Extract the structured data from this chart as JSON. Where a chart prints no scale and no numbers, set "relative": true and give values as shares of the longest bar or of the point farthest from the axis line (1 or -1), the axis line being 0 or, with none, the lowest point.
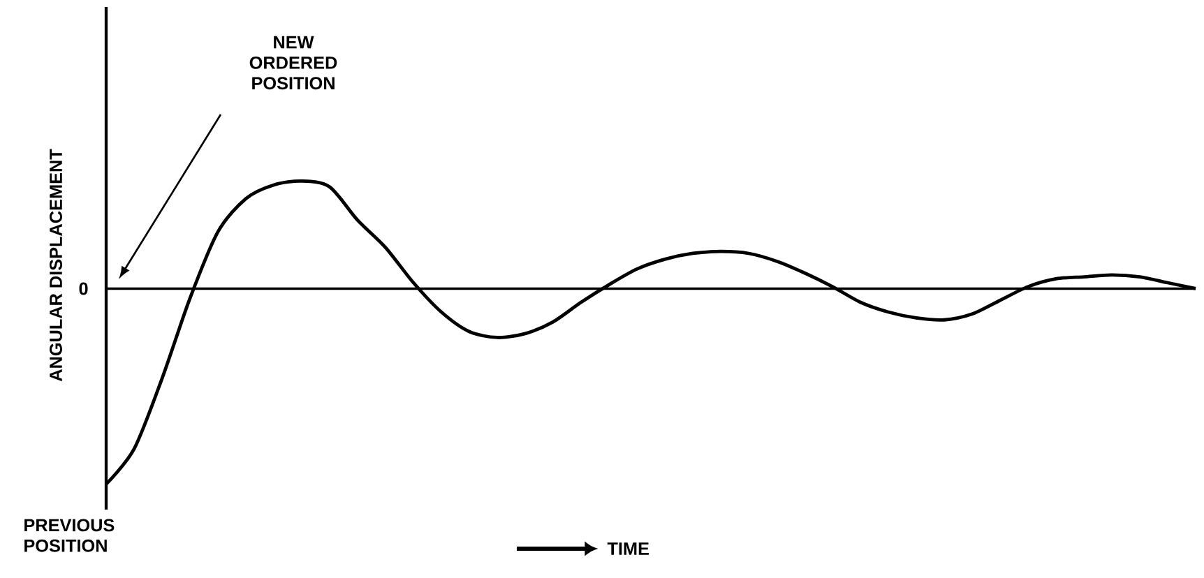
{
  "chart_data": {
    "type": "line",
    "relative": true,
    "xlabel": "TIME",
    "ylabel": "ANGULAR   DISPLACEMENT",
    "categories": [
      null,
      null,
      null,
      null,
      null,
      null,
      null,
      null,
      null,
      null,
      null,
      null,
      null,
      null,
      null,
      null,
      null,
      null,
      null,
      null,
      null,
      null,
      null,
      null,
      null,
      null,
      null,
      null,
      null,
      null,
      null,
      null,
      null,
      null,
      null,
      null,
      null,
      null,
      null,
      null
    ],
    "series": [
      {
        "color": "#000000",
        "values": [
          -1,
          -0.82,
          -0.46,
          -0.05,
          0.29,
          0.46,
          0.53,
          0.55,
          0.52,
          0.35,
          0.21,
          0.03,
          -0.12,
          -0.22,
          -0.25,
          -0.23,
          -0.17,
          -0.07,
          0.02,
          0.1,
          0.15,
          0.18,
          0.19,
          0.18,
          0.14,
          0.08,
          0.01,
          -0.07,
          -0.12,
          -0.15,
          -0.16,
          -0.13,
          -0.06,
          0.01,
          0.05,
          0.06,
          0.07,
          0.06,
          0.03,
          0
        ]
      }
    ],
    "ref_lines": [
      {
        "axis": "y",
        "value": 0,
        "label": "0"
      }
    ],
    "annotations": [
      "NEW ORDERED POSITION",
      "PREVIOUS POSITION"
    ],
    "marker": "none",
    "line_style": "solid"
  }
}
